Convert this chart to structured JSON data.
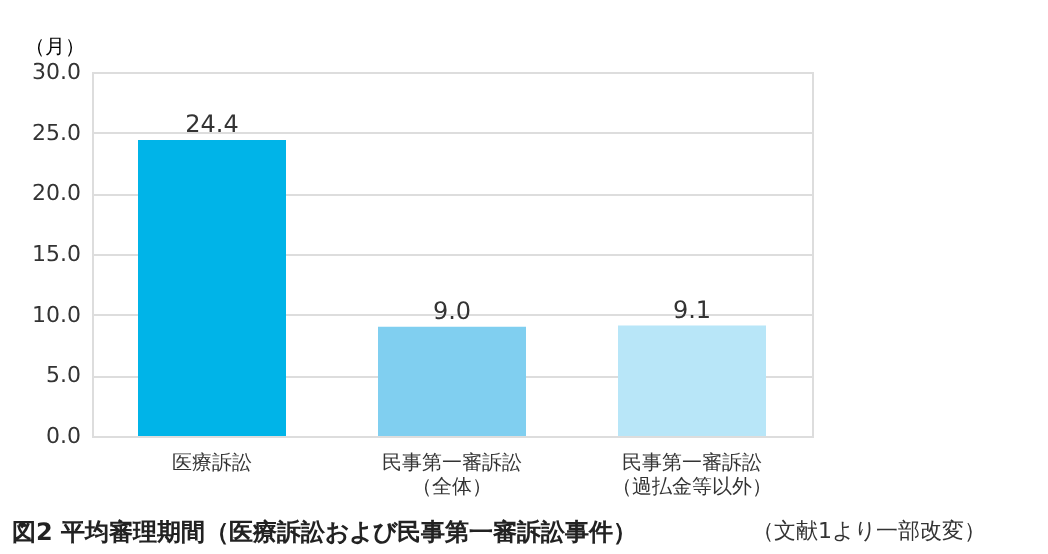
{
  "chart_data": {
    "type": "bar",
    "title": "図2 平均審理期間（医療訴訟および民事第一審訴訟事件）",
    "ylabel": "（月）",
    "annotations": [
      "（文献1より一部改変）"
    ],
    "categories": [
      "医療訴訟",
      "民事第一審訴訟（全体）",
      "民事第一審訴訟（過払金等以外）"
    ],
    "values": [
      24.4,
      9.0,
      9.1
    ],
    "value_labels": [
      "24.4",
      "9.0",
      "9.1"
    ],
    "colors": [
      "#00b4e8",
      "#80cff0",
      "#b8e6f8"
    ],
    "ylim": [
      0,
      30
    ],
    "yticks": [
      {
        "value": 0,
        "label": "0.0"
      },
      {
        "value": 5,
        "label": "5.0"
      },
      {
        "value": 10,
        "label": "10.0"
      },
      {
        "value": 15,
        "label": "15.0"
      },
      {
        "value": 20,
        "label": "20.0"
      },
      {
        "value": 25,
        "label": "25.0"
      },
      {
        "value": 30,
        "label": "30.0"
      }
    ],
    "grid": "y"
  }
}
